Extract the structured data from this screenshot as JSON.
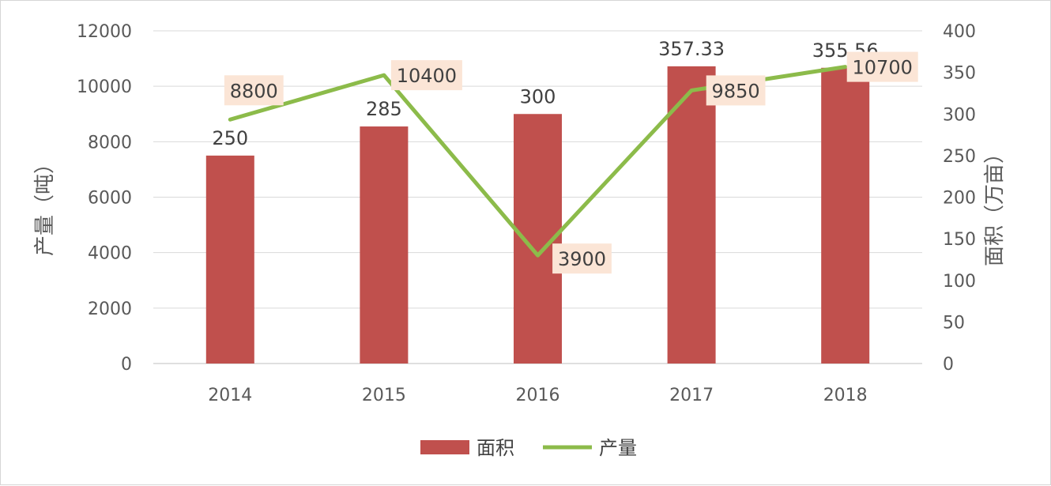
{
  "chart_data": {
    "type": "bar+line",
    "categories": [
      "2014",
      "2015",
      "2016",
      "2017",
      "2018"
    ],
    "series": [
      {
        "name": "面积",
        "type": "bar",
        "axis": "right",
        "values": [
          250,
          285,
          300,
          357.33,
          355.56
        ],
        "labels": [
          "250",
          "285",
          "300",
          "357.33",
          "355.56"
        ],
        "color": "#c0504d"
      },
      {
        "name": "产量",
        "type": "line",
        "axis": "left",
        "values": [
          8800,
          10400,
          3900,
          9850,
          10700
        ],
        "labels": [
          "8800",
          "10400",
          "3900",
          "9850",
          "10700"
        ],
        "color": "#8cbb4a",
        "label_bg": "#fbe5d6"
      }
    ],
    "left_axis": {
      "title": "产量（吨）",
      "ylim": [
        0,
        12000
      ],
      "ticks": [
        "0",
        "2000",
        "4000",
        "6000",
        "8000",
        "10000",
        "12000"
      ]
    },
    "right_axis": {
      "title": "面积（万亩）",
      "ylim": [
        0,
        400
      ],
      "ticks": [
        "0",
        "50",
        "100",
        "150",
        "200",
        "250",
        "300",
        "350",
        "400"
      ]
    },
    "grid": true,
    "legend": "bottom"
  }
}
